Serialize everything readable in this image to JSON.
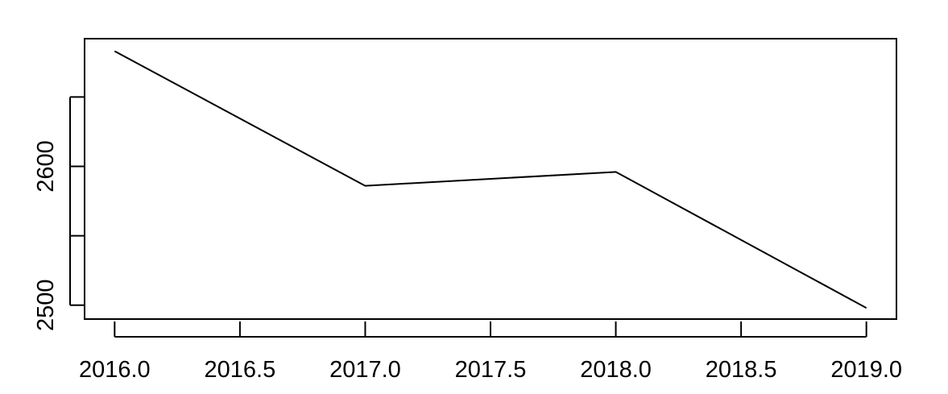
{
  "chart_data": {
    "type": "line",
    "title": "",
    "xlabel": "",
    "ylabel": "",
    "x": [
      2016.0,
      2017.0,
      2018.0,
      2019.0
    ],
    "series": [
      {
        "values": [
          2683,
          2586,
          2596,
          2498
        ]
      }
    ],
    "xlim": [
      2015.88,
      2019.12
    ],
    "ylim": [
      2490,
      2692
    ],
    "x_ticks": [
      2016.0,
      2016.5,
      2017.0,
      2017.5,
      2018.0,
      2018.5,
      2019.0
    ],
    "x_tick_labels": [
      "2016.0",
      "2016.5",
      "2017.0",
      "2017.5",
      "2018.0",
      "2018.5",
      "2019.0"
    ],
    "y_ticks": [
      2500,
      2550,
      2600,
      2650
    ],
    "y_tick_labels": [
      "2500",
      "",
      "2600",
      ""
    ],
    "grid": false,
    "legend": "none",
    "colors": {
      "line": "#000000",
      "frame": "#000000",
      "background": "#ffffff"
    }
  }
}
